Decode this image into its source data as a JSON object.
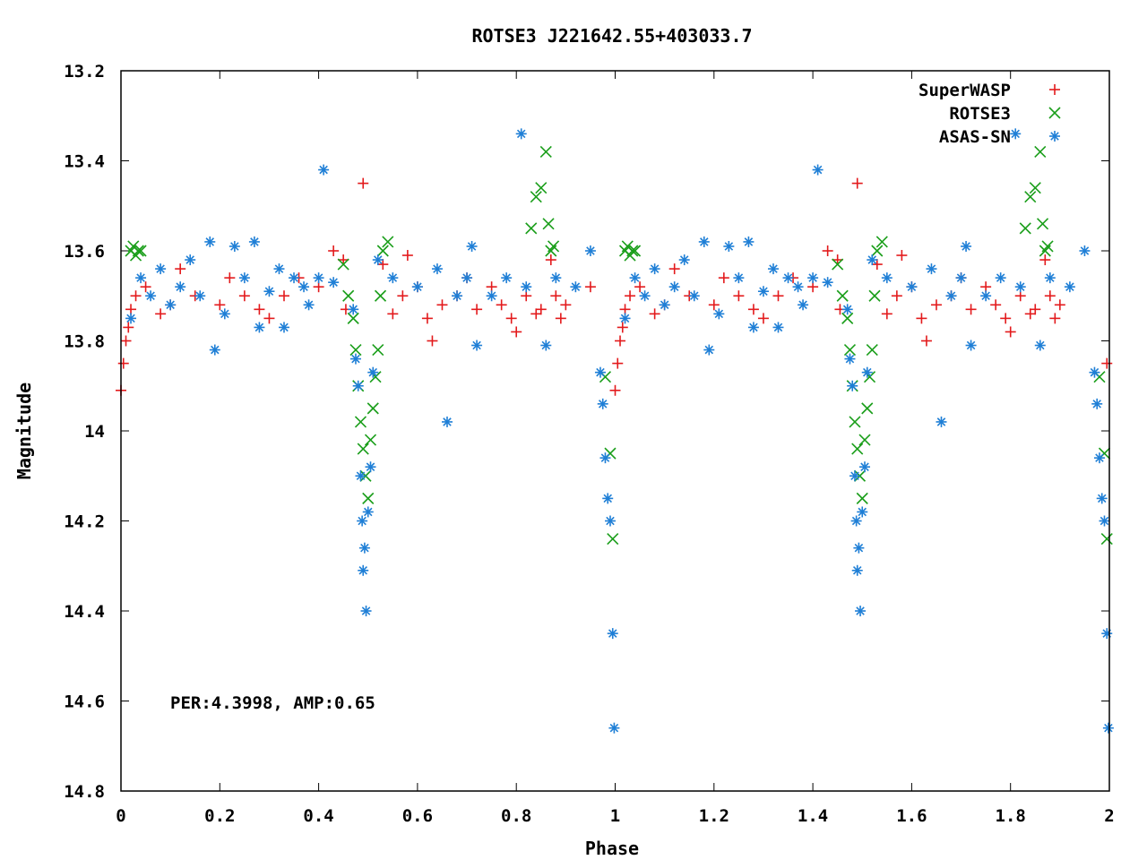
{
  "chart_data": {
    "type": "scatter",
    "title": "ROTSE3 J221642.55+403033.7",
    "xlabel": "Phase",
    "ylabel": "Magnitude",
    "xlim": [
      0,
      2
    ],
    "ylim": [
      13.2,
      14.8
    ],
    "y_inverted": true,
    "x_ticks": [
      "0",
      "0.2",
      "0.4",
      "0.6",
      "0.8",
      "1",
      "1.2",
      "1.4",
      "1.6",
      "1.8",
      "2"
    ],
    "y_ticks": [
      "13.2",
      "13.4",
      "13.6",
      "13.8",
      "14",
      "14.2",
      "14.4",
      "14.6",
      "14.8"
    ],
    "annotation": "PER:4.3998, AMP:0.65",
    "legend_position": "top-right",
    "series": [
      {
        "name": "SuperWASP",
        "color": "#e31a1c",
        "marker": "plus",
        "points": [
          [
            0.0,
            13.91
          ],
          [
            0.005,
            13.85
          ],
          [
            0.01,
            13.8
          ],
          [
            0.015,
            13.77
          ],
          [
            0.02,
            13.73
          ],
          [
            0.03,
            13.7
          ],
          [
            0.05,
            13.68
          ],
          [
            0.08,
            13.74
          ],
          [
            0.1,
            13.72
          ],
          [
            0.12,
            13.64
          ],
          [
            0.15,
            13.7
          ],
          [
            0.2,
            13.72
          ],
          [
            0.22,
            13.66
          ],
          [
            0.25,
            13.7
          ],
          [
            0.28,
            13.73
          ],
          [
            0.3,
            13.75
          ],
          [
            0.33,
            13.7
          ],
          [
            0.36,
            13.66
          ],
          [
            0.4,
            13.68
          ],
          [
            0.43,
            13.6
          ],
          [
            0.45,
            13.62
          ],
          [
            0.455,
            13.73
          ],
          [
            0.49,
            13.45
          ],
          [
            0.53,
            13.63
          ],
          [
            0.55,
            13.74
          ],
          [
            0.57,
            13.7
          ],
          [
            0.58,
            13.61
          ],
          [
            0.6,
            13.68
          ],
          [
            0.62,
            13.75
          ],
          [
            0.63,
            13.8
          ],
          [
            0.65,
            13.72
          ],
          [
            0.68,
            13.7
          ],
          [
            0.7,
            13.66
          ],
          [
            0.72,
            13.73
          ],
          [
            0.75,
            13.68
          ],
          [
            0.77,
            13.72
          ],
          [
            0.79,
            13.75
          ],
          [
            0.8,
            13.78
          ],
          [
            0.82,
            13.7
          ],
          [
            0.84,
            13.74
          ],
          [
            0.85,
            13.73
          ],
          [
            0.87,
            13.62
          ],
          [
            0.88,
            13.7
          ],
          [
            0.89,
            13.75
          ],
          [
            0.9,
            13.72
          ],
          [
            0.95,
            13.68
          ],
          [
            1.0,
            13.91
          ],
          [
            1.005,
            13.85
          ],
          [
            1.01,
            13.8
          ],
          [
            1.015,
            13.77
          ],
          [
            1.02,
            13.73
          ],
          [
            1.03,
            13.7
          ],
          [
            1.05,
            13.68
          ],
          [
            1.08,
            13.74
          ],
          [
            1.1,
            13.72
          ],
          [
            1.12,
            13.64
          ],
          [
            1.15,
            13.7
          ],
          [
            1.2,
            13.72
          ],
          [
            1.22,
            13.66
          ],
          [
            1.25,
            13.7
          ],
          [
            1.28,
            13.73
          ],
          [
            1.3,
            13.75
          ],
          [
            1.33,
            13.7
          ],
          [
            1.36,
            13.66
          ],
          [
            1.4,
            13.68
          ],
          [
            1.43,
            13.6
          ],
          [
            1.45,
            13.62
          ],
          [
            1.455,
            13.73
          ],
          [
            1.49,
            13.45
          ],
          [
            1.53,
            13.63
          ],
          [
            1.55,
            13.74
          ],
          [
            1.57,
            13.7
          ],
          [
            1.58,
            13.61
          ],
          [
            1.6,
            13.68
          ],
          [
            1.62,
            13.75
          ],
          [
            1.63,
            13.8
          ],
          [
            1.65,
            13.72
          ],
          [
            1.68,
            13.7
          ],
          [
            1.7,
            13.66
          ],
          [
            1.72,
            13.73
          ],
          [
            1.75,
            13.68
          ],
          [
            1.77,
            13.72
          ],
          [
            1.79,
            13.75
          ],
          [
            1.8,
            13.78
          ],
          [
            1.82,
            13.7
          ],
          [
            1.84,
            13.74
          ],
          [
            1.85,
            13.73
          ],
          [
            1.87,
            13.62
          ],
          [
            1.88,
            13.7
          ],
          [
            1.89,
            13.75
          ],
          [
            1.9,
            13.72
          ],
          [
            1.995,
            13.85
          ]
        ]
      },
      {
        "name": "ROTSE3",
        "color": "#1a9e1a",
        "marker": "cross",
        "points": [
          [
            0.02,
            13.6
          ],
          [
            0.025,
            13.59
          ],
          [
            0.03,
            13.61
          ],
          [
            0.035,
            13.6
          ],
          [
            0.04,
            13.6
          ],
          [
            0.45,
            13.63
          ],
          [
            0.46,
            13.7
          ],
          [
            0.47,
            13.75
          ],
          [
            0.475,
            13.82
          ],
          [
            0.48,
            13.9
          ],
          [
            0.485,
            13.98
          ],
          [
            0.49,
            14.04
          ],
          [
            0.495,
            14.1
          ],
          [
            0.5,
            14.15
          ],
          [
            0.505,
            14.02
          ],
          [
            0.51,
            13.95
          ],
          [
            0.515,
            13.88
          ],
          [
            0.52,
            13.82
          ],
          [
            0.525,
            13.7
          ],
          [
            0.53,
            13.6
          ],
          [
            0.54,
            13.58
          ],
          [
            0.83,
            13.55
          ],
          [
            0.84,
            13.48
          ],
          [
            0.85,
            13.46
          ],
          [
            0.86,
            13.38
          ],
          [
            0.865,
            13.54
          ],
          [
            0.87,
            13.6
          ],
          [
            0.875,
            13.59
          ],
          [
            0.98,
            13.88
          ],
          [
            0.99,
            14.05
          ],
          [
            0.995,
            14.24
          ],
          [
            1.02,
            13.6
          ],
          [
            1.025,
            13.59
          ],
          [
            1.03,
            13.61
          ],
          [
            1.035,
            13.6
          ],
          [
            1.04,
            13.6
          ],
          [
            1.45,
            13.63
          ],
          [
            1.46,
            13.7
          ],
          [
            1.47,
            13.75
          ],
          [
            1.475,
            13.82
          ],
          [
            1.48,
            13.9
          ],
          [
            1.485,
            13.98
          ],
          [
            1.49,
            14.04
          ],
          [
            1.495,
            14.1
          ],
          [
            1.5,
            14.15
          ],
          [
            1.505,
            14.02
          ],
          [
            1.51,
            13.95
          ],
          [
            1.515,
            13.88
          ],
          [
            1.52,
            13.82
          ],
          [
            1.525,
            13.7
          ],
          [
            1.53,
            13.6
          ],
          [
            1.54,
            13.58
          ],
          [
            1.83,
            13.55
          ],
          [
            1.84,
            13.48
          ],
          [
            1.85,
            13.46
          ],
          [
            1.86,
            13.38
          ],
          [
            1.865,
            13.54
          ],
          [
            1.87,
            13.6
          ],
          [
            1.875,
            13.59
          ],
          [
            1.98,
            13.88
          ],
          [
            1.99,
            14.05
          ],
          [
            1.995,
            14.24
          ]
        ]
      },
      {
        "name": "ASAS-SN",
        "color": "#1f7fd6",
        "marker": "star",
        "points": [
          [
            0.02,
            13.75
          ],
          [
            0.04,
            13.66
          ],
          [
            0.06,
            13.7
          ],
          [
            0.08,
            13.64
          ],
          [
            0.1,
            13.72
          ],
          [
            0.12,
            13.68
          ],
          [
            0.14,
            13.62
          ],
          [
            0.16,
            13.7
          ],
          [
            0.18,
            13.58
          ],
          [
            0.19,
            13.82
          ],
          [
            0.21,
            13.74
          ],
          [
            0.23,
            13.59
          ],
          [
            0.25,
            13.66
          ],
          [
            0.27,
            13.58
          ],
          [
            0.28,
            13.77
          ],
          [
            0.3,
            13.69
          ],
          [
            0.32,
            13.64
          ],
          [
            0.33,
            13.77
          ],
          [
            0.35,
            13.66
          ],
          [
            0.37,
            13.68
          ],
          [
            0.38,
            13.72
          ],
          [
            0.4,
            13.66
          ],
          [
            0.41,
            13.42
          ],
          [
            0.43,
            13.67
          ],
          [
            0.47,
            13.73
          ],
          [
            0.475,
            13.84
          ],
          [
            0.48,
            13.9
          ],
          [
            0.485,
            14.1
          ],
          [
            0.488,
            14.2
          ],
          [
            0.49,
            14.31
          ],
          [
            0.493,
            14.26
          ],
          [
            0.496,
            14.4
          ],
          [
            0.5,
            14.18
          ],
          [
            0.505,
            14.08
          ],
          [
            0.51,
            13.87
          ],
          [
            0.52,
            13.62
          ],
          [
            0.55,
            13.66
          ],
          [
            0.6,
            13.68
          ],
          [
            0.64,
            13.64
          ],
          [
            0.66,
            13.98
          ],
          [
            0.68,
            13.7
          ],
          [
            0.7,
            13.66
          ],
          [
            0.71,
            13.59
          ],
          [
            0.72,
            13.81
          ],
          [
            0.75,
            13.7
          ],
          [
            0.78,
            13.66
          ],
          [
            0.81,
            13.34
          ],
          [
            0.82,
            13.68
          ],
          [
            0.86,
            13.81
          ],
          [
            0.88,
            13.66
          ],
          [
            0.92,
            13.68
          ],
          [
            0.95,
            13.6
          ],
          [
            0.97,
            13.87
          ],
          [
            0.975,
            13.94
          ],
          [
            0.98,
            14.06
          ],
          [
            0.985,
            14.15
          ],
          [
            0.99,
            14.2
          ],
          [
            0.995,
            14.45
          ],
          [
            0.998,
            14.66
          ],
          [
            1.02,
            13.75
          ],
          [
            1.04,
            13.66
          ],
          [
            1.06,
            13.7
          ],
          [
            1.08,
            13.64
          ],
          [
            1.1,
            13.72
          ],
          [
            1.12,
            13.68
          ],
          [
            1.14,
            13.62
          ],
          [
            1.16,
            13.7
          ],
          [
            1.18,
            13.58
          ],
          [
            1.19,
            13.82
          ],
          [
            1.21,
            13.74
          ],
          [
            1.23,
            13.59
          ],
          [
            1.25,
            13.66
          ],
          [
            1.27,
            13.58
          ],
          [
            1.28,
            13.77
          ],
          [
            1.3,
            13.69
          ],
          [
            1.32,
            13.64
          ],
          [
            1.33,
            13.77
          ],
          [
            1.35,
            13.66
          ],
          [
            1.37,
            13.68
          ],
          [
            1.38,
            13.72
          ],
          [
            1.4,
            13.66
          ],
          [
            1.41,
            13.42
          ],
          [
            1.43,
            13.67
          ],
          [
            1.47,
            13.73
          ],
          [
            1.475,
            13.84
          ],
          [
            1.48,
            13.9
          ],
          [
            1.485,
            14.1
          ],
          [
            1.488,
            14.2
          ],
          [
            1.49,
            14.31
          ],
          [
            1.493,
            14.26
          ],
          [
            1.496,
            14.4
          ],
          [
            1.5,
            14.18
          ],
          [
            1.505,
            14.08
          ],
          [
            1.51,
            13.87
          ],
          [
            1.52,
            13.62
          ],
          [
            1.55,
            13.66
          ],
          [
            1.6,
            13.68
          ],
          [
            1.64,
            13.64
          ],
          [
            1.66,
            13.98
          ],
          [
            1.68,
            13.7
          ],
          [
            1.7,
            13.66
          ],
          [
            1.71,
            13.59
          ],
          [
            1.72,
            13.81
          ],
          [
            1.75,
            13.7
          ],
          [
            1.78,
            13.66
          ],
          [
            1.81,
            13.34
          ],
          [
            1.82,
            13.68
          ],
          [
            1.86,
            13.81
          ],
          [
            1.88,
            13.66
          ],
          [
            1.92,
            13.68
          ],
          [
            1.95,
            13.6
          ],
          [
            1.97,
            13.87
          ],
          [
            1.975,
            13.94
          ],
          [
            1.98,
            14.06
          ],
          [
            1.985,
            14.15
          ],
          [
            1.99,
            14.2
          ],
          [
            1.995,
            14.45
          ],
          [
            1.998,
            14.66
          ]
        ]
      }
    ]
  }
}
